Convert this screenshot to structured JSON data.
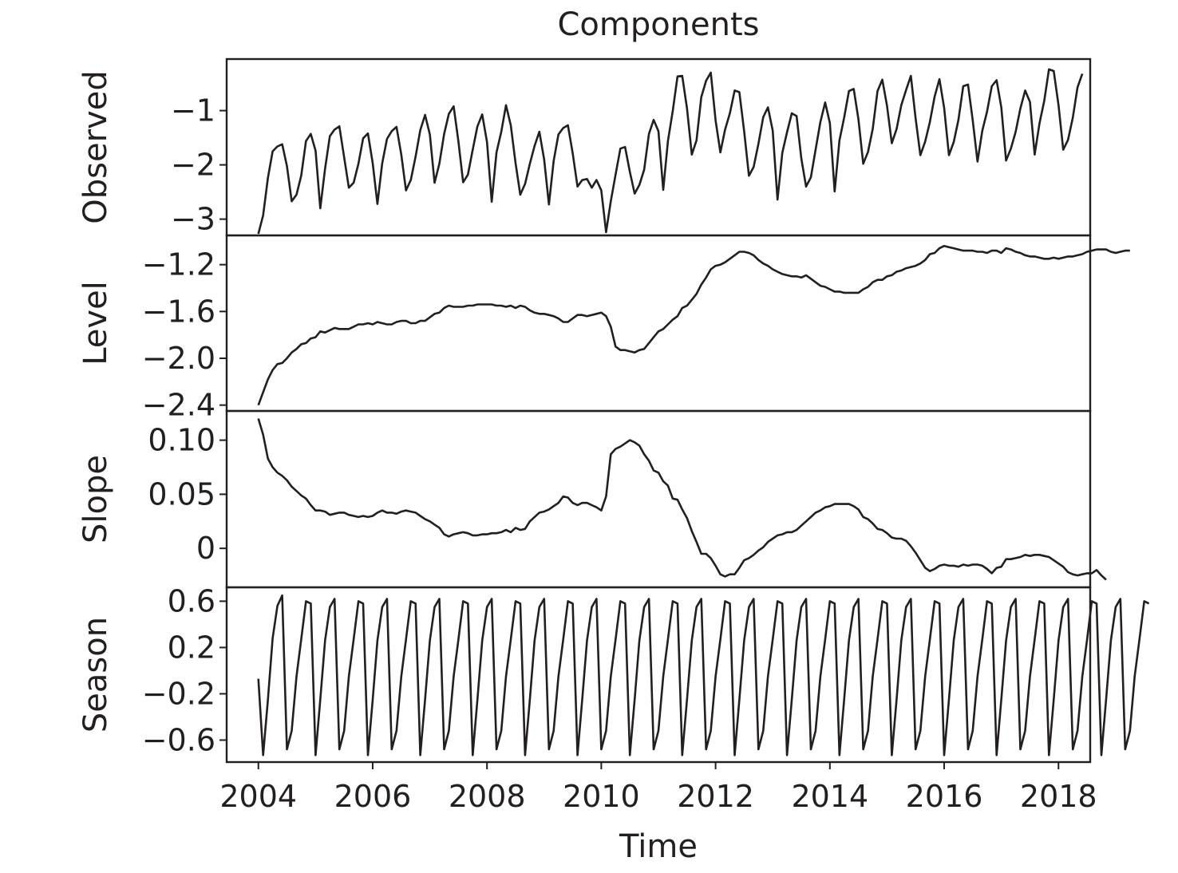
{
  "chart_data": {
    "type": "line",
    "title": "Components",
    "xlabel": "Time",
    "x_ticks": [
      "2004",
      "2006",
      "2008",
      "2010",
      "2012",
      "2014",
      "2016",
      "2018"
    ],
    "xlim": [
      2004,
      2018
    ],
    "color": "#231f20",
    "start": 2004.0,
    "step": 0.0833333,
    "panels": [
      {
        "name": "Observed",
        "ylim": [
          -3.3,
          -0.05
        ],
        "y_ticks": [
          -1,
          -2,
          -3
        ],
        "y_tick_labels": [
          "−1",
          "−2",
          "−3"
        ],
        "values": [
          -3.27,
          -2.93,
          -2.24,
          -1.75,
          -1.66,
          -1.62,
          -2.02,
          -2.67,
          -2.55,
          -2.2,
          -1.56,
          -1.43,
          -1.74,
          -2.8,
          -2.07,
          -1.47,
          -1.35,
          -1.29,
          -1.86,
          -2.42,
          -2.33,
          -1.98,
          -1.51,
          -1.42,
          -1.97,
          -2.72,
          -1.97,
          -1.52,
          -1.38,
          -1.3,
          -1.81,
          -2.47,
          -2.28,
          -1.85,
          -1.36,
          -1.08,
          -1.44,
          -2.33,
          -1.98,
          -1.43,
          -1.06,
          -0.92,
          -1.57,
          -2.32,
          -2.18,
          -1.72,
          -1.29,
          -1.07,
          -1.58,
          -2.68,
          -1.77,
          -1.39,
          -0.9,
          -1.27,
          -1.97,
          -2.55,
          -2.35,
          -1.98,
          -1.65,
          -1.39,
          -1.9,
          -2.73,
          -1.93,
          -1.44,
          -1.32,
          -1.27,
          -1.79,
          -2.4,
          -2.28,
          -2.26,
          -2.42,
          -2.28,
          -2.47,
          -3.24,
          -2.67,
          -2.18,
          -1.7,
          -1.67,
          -2.13,
          -2.53,
          -2.37,
          -2.09,
          -1.43,
          -1.17,
          -1.38,
          -2.46,
          -1.56,
          -1.01,
          -0.37,
          -0.36,
          -0.96,
          -1.81,
          -1.55,
          -0.75,
          -0.45,
          -0.3,
          -1.18,
          -1.77,
          -1.35,
          -1.05,
          -0.63,
          -0.66,
          -1.38,
          -2.2,
          -2.04,
          -1.61,
          -1.12,
          -0.94,
          -1.37,
          -2.64,
          -1.78,
          -1.4,
          -1.05,
          -1.1,
          -1.88,
          -2.4,
          -2.23,
          -1.72,
          -1.21,
          -0.85,
          -1.23,
          -2.49,
          -1.55,
          -1.13,
          -0.64,
          -0.6,
          -1.16,
          -1.98,
          -1.76,
          -1.34,
          -0.64,
          -0.43,
          -0.91,
          -1.6,
          -1.34,
          -0.9,
          -0.62,
          -0.36,
          -1.14,
          -1.82,
          -1.57,
          -1.21,
          -0.74,
          -0.42,
          -0.95,
          -1.82,
          -1.58,
          -1.17,
          -0.55,
          -0.52,
          -1.18,
          -1.94,
          -1.37,
          -1.02,
          -0.55,
          -0.44,
          -0.94,
          -1.92,
          -1.7,
          -1.39,
          -0.96,
          -0.63,
          -0.84,
          -1.81,
          -1.24,
          -0.82,
          -0.24,
          -0.27,
          -0.9,
          -1.72,
          -1.54,
          -1.13,
          -0.57,
          -0.32
        ]
      },
      {
        "name": "Level",
        "ylim": [
          -2.45,
          -0.95
        ],
        "y_ticks": [
          -1.2,
          -1.6,
          -2.0,
          -2.4
        ],
        "y_tick_labels": [
          "−1.2",
          "−1.6",
          "−2.0",
          "−2.4"
        ],
        "values": [
          -2.4,
          -2.29,
          -2.18,
          -2.1,
          -2.05,
          -2.04,
          -2.0,
          -1.95,
          -1.92,
          -1.88,
          -1.87,
          -1.83,
          -1.82,
          -1.77,
          -1.78,
          -1.76,
          -1.74,
          -1.75,
          -1.75,
          -1.75,
          -1.73,
          -1.71,
          -1.71,
          -1.7,
          -1.71,
          -1.69,
          -1.7,
          -1.71,
          -1.71,
          -1.69,
          -1.68,
          -1.68,
          -1.7,
          -1.7,
          -1.68,
          -1.68,
          -1.65,
          -1.62,
          -1.61,
          -1.57,
          -1.55,
          -1.56,
          -1.56,
          -1.56,
          -1.55,
          -1.55,
          -1.54,
          -1.54,
          -1.54,
          -1.54,
          -1.55,
          -1.55,
          -1.56,
          -1.55,
          -1.57,
          -1.55,
          -1.56,
          -1.59,
          -1.61,
          -1.62,
          -1.62,
          -1.63,
          -1.64,
          -1.66,
          -1.69,
          -1.69,
          -1.66,
          -1.63,
          -1.63,
          -1.64,
          -1.63,
          -1.62,
          -1.61,
          -1.64,
          -1.73,
          -1.9,
          -1.93,
          -1.93,
          -1.94,
          -1.95,
          -1.93,
          -1.92,
          -1.87,
          -1.82,
          -1.77,
          -1.75,
          -1.71,
          -1.67,
          -1.64,
          -1.57,
          -1.55,
          -1.5,
          -1.45,
          -1.37,
          -1.31,
          -1.24,
          -1.21,
          -1.2,
          -1.18,
          -1.15,
          -1.12,
          -1.09,
          -1.09,
          -1.1,
          -1.12,
          -1.16,
          -1.19,
          -1.21,
          -1.24,
          -1.26,
          -1.28,
          -1.29,
          -1.3,
          -1.3,
          -1.31,
          -1.29,
          -1.32,
          -1.35,
          -1.38,
          -1.39,
          -1.41,
          -1.43,
          -1.43,
          -1.44,
          -1.44,
          -1.44,
          -1.44,
          -1.41,
          -1.39,
          -1.35,
          -1.33,
          -1.33,
          -1.3,
          -1.29,
          -1.26,
          -1.25,
          -1.23,
          -1.22,
          -1.21,
          -1.19,
          -1.16,
          -1.11,
          -1.1,
          -1.06,
          -1.04,
          -1.05,
          -1.06,
          -1.07,
          -1.08,
          -1.08,
          -1.08,
          -1.09,
          -1.09,
          -1.1,
          -1.08,
          -1.08,
          -1.1,
          -1.06,
          -1.07,
          -1.09,
          -1.1,
          -1.12,
          -1.13,
          -1.13,
          -1.14,
          -1.15,
          -1.15,
          -1.14,
          -1.15,
          -1.14,
          -1.13,
          -1.13,
          -1.12,
          -1.11,
          -1.09,
          -1.08,
          -1.07,
          -1.07,
          -1.07,
          -1.09,
          -1.1,
          -1.09,
          -1.08,
          -1.08
        ]
      },
      {
        "name": "Slope",
        "ylim": [
          -0.036,
          0.127
        ],
        "y_ticks": [
          0.1,
          0.05,
          0
        ],
        "y_tick_labels": [
          "0.10",
          "0.05",
          "0"
        ],
        "values": [
          0.12,
          0.105,
          0.083,
          0.075,
          0.07,
          0.067,
          0.063,
          0.057,
          0.053,
          0.049,
          0.046,
          0.04,
          0.035,
          0.035,
          0.034,
          0.031,
          0.032,
          0.033,
          0.033,
          0.031,
          0.03,
          0.029,
          0.03,
          0.029,
          0.03,
          0.033,
          0.035,
          0.033,
          0.033,
          0.032,
          0.034,
          0.035,
          0.034,
          0.033,
          0.03,
          0.027,
          0.025,
          0.022,
          0.019,
          0.013,
          0.011,
          0.013,
          0.014,
          0.015,
          0.014,
          0.012,
          0.012,
          0.013,
          0.013,
          0.014,
          0.014,
          0.015,
          0.017,
          0.015,
          0.019,
          0.017,
          0.018,
          0.025,
          0.029,
          0.033,
          0.034,
          0.036,
          0.039,
          0.042,
          0.048,
          0.047,
          0.042,
          0.04,
          0.042,
          0.042,
          0.04,
          0.038,
          0.035,
          0.048,
          0.087,
          0.092,
          0.094,
          0.097,
          0.1,
          0.098,
          0.095,
          0.087,
          0.081,
          0.072,
          0.07,
          0.062,
          0.058,
          0.046,
          0.045,
          0.036,
          0.028,
          0.016,
          0.006,
          -0.005,
          -0.005,
          -0.009,
          -0.016,
          -0.024,
          -0.026,
          -0.024,
          -0.024,
          -0.018,
          -0.011,
          -0.009,
          -0.006,
          -0.002,
          0.001,
          0.006,
          0.009,
          0.012,
          0.013,
          0.015,
          0.015,
          0.017,
          0.021,
          0.025,
          0.029,
          0.033,
          0.035,
          0.038,
          0.039,
          0.041,
          0.041,
          0.041,
          0.041,
          0.039,
          0.036,
          0.029,
          0.027,
          0.023,
          0.018,
          0.017,
          0.014,
          0.01,
          0.009,
          0.009,
          0.007,
          0.002,
          -0.004,
          -0.011,
          -0.018,
          -0.021,
          -0.019,
          -0.016,
          -0.015,
          -0.016,
          -0.016,
          -0.017,
          -0.015,
          -0.016,
          -0.015,
          -0.015,
          -0.016,
          -0.019,
          -0.023,
          -0.018,
          -0.017,
          -0.01,
          -0.01,
          -0.009,
          -0.008,
          -0.006,
          -0.007,
          -0.006,
          -0.006,
          -0.007,
          -0.008,
          -0.011,
          -0.014,
          -0.017,
          -0.022,
          -0.024,
          -0.025,
          -0.024,
          -0.023,
          -0.023,
          -0.02,
          -0.025,
          -0.029
        ]
      },
      {
        "name": "Season",
        "ylim": [
          -0.79,
          0.72
        ],
        "y_ticks": [
          0.6,
          0.2,
          -0.2,
          -0.6
        ],
        "y_tick_labels": [
          "0.6",
          "0.2",
          "−0.2",
          "−0.6"
        ],
        "values": [
          -0.07,
          -0.73,
          -0.25,
          0.28,
          0.56,
          0.65,
          -0.68,
          -0.52,
          -0.05,
          0.27,
          0.6,
          0.58,
          -0.73,
          -0.25,
          0.26,
          0.55,
          0.62,
          -0.68,
          -0.52,
          -0.05,
          0.27,
          0.6,
          0.58,
          -0.73,
          -0.25,
          0.26,
          0.55,
          0.62,
          -0.68,
          -0.52,
          -0.05,
          0.27,
          0.6,
          0.58,
          -0.73,
          -0.25,
          0.26,
          0.55,
          0.62,
          -0.68,
          -0.52,
          -0.05,
          0.27,
          0.6,
          0.58,
          -0.73,
          -0.25,
          0.26,
          0.55,
          0.62,
          -0.68,
          -0.52,
          -0.05,
          0.27,
          0.6,
          0.58,
          -0.73,
          -0.25,
          0.26,
          0.55,
          0.62,
          -0.68,
          -0.52,
          -0.05,
          0.27,
          0.6,
          0.58,
          -0.73,
          -0.25,
          0.26,
          0.55,
          0.62,
          -0.68,
          -0.52,
          -0.05,
          0.27,
          0.6,
          0.58,
          -0.73,
          -0.25,
          0.26,
          0.55,
          0.62,
          -0.68,
          -0.52,
          -0.05,
          0.27,
          0.6,
          0.58,
          -0.73,
          -0.25,
          0.26,
          0.55,
          0.62,
          -0.68,
          -0.52,
          -0.05,
          0.27,
          0.6,
          0.58,
          -0.73,
          -0.25,
          0.26,
          0.55,
          0.62,
          -0.68,
          -0.52,
          -0.05,
          0.27,
          0.6,
          0.58,
          -0.73,
          -0.25,
          0.26,
          0.55,
          0.62,
          -0.68,
          -0.52,
          -0.05,
          0.27,
          0.6,
          0.58,
          -0.73,
          -0.25,
          0.26,
          0.55,
          0.62,
          -0.68,
          -0.52,
          -0.05,
          0.27,
          0.6,
          0.58,
          -0.73,
          -0.25,
          0.26,
          0.55,
          0.62,
          -0.68,
          -0.52,
          -0.05,
          0.27,
          0.6,
          0.58,
          -0.73,
          -0.25,
          0.26,
          0.55,
          0.62,
          -0.68,
          -0.52,
          -0.05,
          0.27,
          0.6,
          0.58,
          -0.73,
          -0.25,
          0.26,
          0.55,
          0.62,
          -0.68,
          -0.52,
          -0.05,
          0.27,
          0.6,
          0.58,
          -0.73,
          -0.25,
          0.26,
          0.55,
          0.62,
          -0.68,
          -0.52,
          -0.05,
          0.27,
          0.6,
          0.58,
          -0.73,
          -0.25,
          0.26,
          0.55,
          0.62,
          -0.68,
          -0.52,
          -0.05,
          0.27,
          0.6,
          0.58
        ]
      }
    ]
  }
}
